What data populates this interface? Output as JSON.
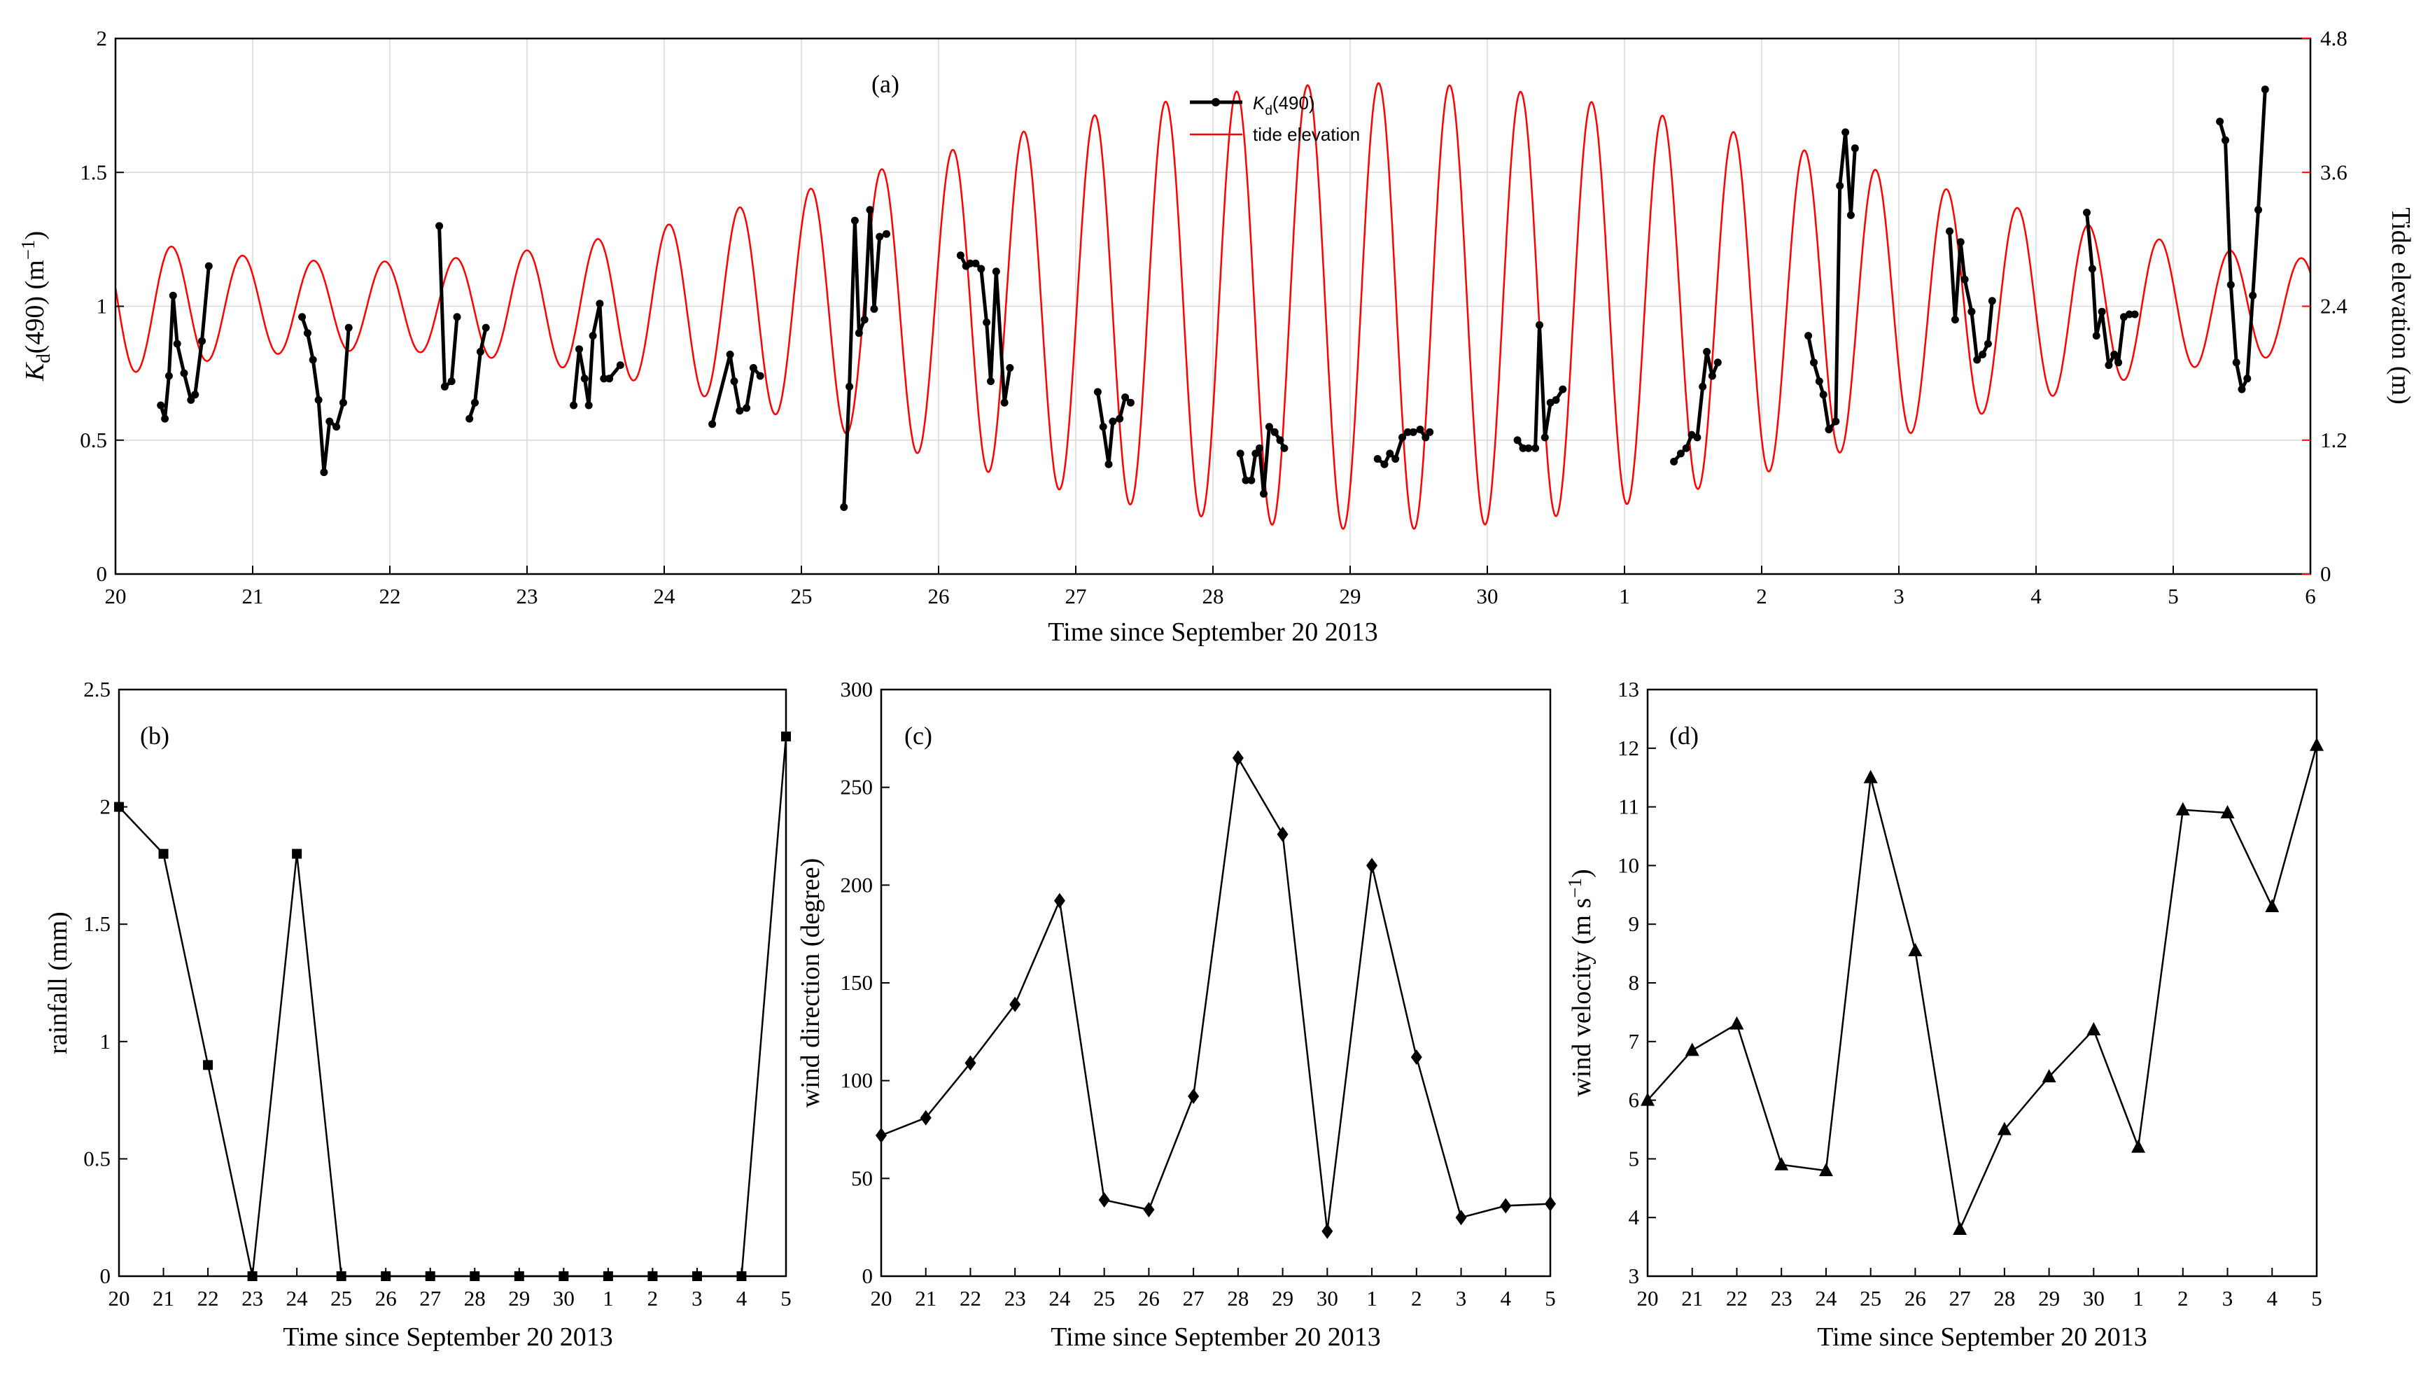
{
  "chart_data": [
    {
      "panel": "(a)",
      "type": "line",
      "xlabel": "Time since September 20 2013",
      "ylabel": "K_d(490) (m^-1)",
      "ylabel_parts": [
        "K",
        "d",
        "(490) (m",
        "−1",
        ")"
      ],
      "ylabel_right": "Tide elevation (m)",
      "x_ticks": [
        "20",
        "21",
        "22",
        "23",
        "24",
        "25",
        "26",
        "27",
        "28",
        "29",
        "30",
        "1",
        "2",
        "3",
        "4",
        "5",
        "6"
      ],
      "ylim": [
        0,
        2
      ],
      "yticks": [
        "0",
        "0.5",
        "1",
        "1.5",
        "2"
      ],
      "ylim_right": [
        0,
        4.8
      ],
      "yticks_right": [
        "0",
        "1.2",
        "2.4",
        "3.6",
        "4.8"
      ],
      "grid": true,
      "legend": [
        "K_d(490)",
        "tide elevation"
      ],
      "legend_placement": "top-center",
      "legend_parts": [
        "K",
        "d",
        "(490)"
      ],
      "legend_tide": "tide elevation",
      "tide": {
        "color": "#ff0000",
        "mean": 2.4,
        "period_days": 0.5175,
        "phase_day": 0.41,
        "amp_max": 2.0,
        "amp_min": 0.4,
        "amp_min_day": 9.2
      },
      "kd_segments": [
        [
          [
            0.33,
            0.63
          ],
          [
            0.36,
            0.58
          ],
          [
            0.39,
            0.74
          ],
          [
            0.42,
            1.04
          ],
          [
            0.45,
            0.86
          ],
          [
            0.5,
            0.75
          ],
          [
            0.55,
            0.65
          ],
          [
            0.58,
            0.67
          ],
          [
            0.63,
            0.87
          ],
          [
            0.68,
            1.15
          ]
        ],
        [
          [
            1.36,
            0.96
          ],
          [
            1.4,
            0.9
          ],
          [
            1.44,
            0.8
          ],
          [
            1.48,
            0.65
          ],
          [
            1.52,
            0.38
          ],
          [
            1.56,
            0.57
          ],
          [
            1.61,
            0.55
          ],
          [
            1.66,
            0.64
          ],
          [
            1.7,
            0.92
          ]
        ],
        [
          [
            2.36,
            1.3
          ],
          [
            2.4,
            0.7
          ],
          [
            2.45,
            0.72
          ],
          [
            2.49,
            0.96
          ]
        ],
        [
          [
            2.58,
            0.58
          ],
          [
            2.62,
            0.64
          ],
          [
            2.66,
            0.83
          ],
          [
            2.7,
            0.92
          ]
        ],
        [
          [
            3.34,
            0.63
          ],
          [
            3.38,
            0.84
          ],
          [
            3.42,
            0.73
          ],
          [
            3.45,
            0.63
          ],
          [
            3.48,
            0.89
          ],
          [
            3.53,
            1.01
          ],
          [
            3.56,
            0.73
          ],
          [
            3.6,
            0.73
          ],
          [
            3.68,
            0.78
          ]
        ],
        [
          [
            4.35,
            0.56
          ],
          [
            4.48,
            0.82
          ],
          [
            4.51,
            0.72
          ],
          [
            4.55,
            0.61
          ],
          [
            4.6,
            0.62
          ],
          [
            4.65,
            0.77
          ],
          [
            4.7,
            0.74
          ]
        ],
        [
          [
            5.31,
            0.25
          ],
          [
            5.35,
            0.7
          ],
          [
            5.39,
            1.32
          ],
          [
            5.42,
            0.9
          ],
          [
            5.46,
            0.95
          ],
          [
            5.5,
            1.36
          ],
          [
            5.53,
            0.99
          ],
          [
            5.57,
            1.26
          ],
          [
            5.62,
            1.27
          ]
        ],
        [
          [
            6.16,
            1.19
          ],
          [
            6.2,
            1.15
          ],
          [
            6.23,
            1.16
          ],
          [
            6.27,
            1.16
          ],
          [
            6.31,
            1.14
          ],
          [
            6.35,
            0.94
          ],
          [
            6.38,
            0.72
          ],
          [
            6.42,
            1.13
          ],
          [
            6.48,
            0.64
          ],
          [
            6.52,
            0.77
          ]
        ],
        [
          [
            7.16,
            0.68
          ],
          [
            7.2,
            0.55
          ],
          [
            7.24,
            0.41
          ],
          [
            7.27,
            0.57
          ],
          [
            7.32,
            0.58
          ],
          [
            7.36,
            0.66
          ],
          [
            7.4,
            0.64
          ]
        ],
        [
          [
            8.2,
            0.45
          ],
          [
            8.24,
            0.35
          ],
          [
            8.28,
            0.35
          ],
          [
            8.31,
            0.45
          ],
          [
            8.34,
            0.47
          ],
          [
            8.37,
            0.3
          ],
          [
            8.41,
            0.55
          ],
          [
            8.45,
            0.53
          ],
          [
            8.49,
            0.5
          ],
          [
            8.52,
            0.47
          ]
        ],
        [
          [
            9.2,
            0.43
          ],
          [
            9.25,
            0.41
          ],
          [
            9.29,
            0.45
          ],
          [
            9.33,
            0.43
          ],
          [
            9.38,
            0.51
          ],
          [
            9.42,
            0.53
          ],
          [
            9.46,
            0.53
          ],
          [
            9.51,
            0.54
          ],
          [
            9.55,
            0.51
          ],
          [
            9.58,
            0.53
          ]
        ],
        [
          [
            10.22,
            0.5
          ],
          [
            10.26,
            0.47
          ],
          [
            10.3,
            0.47
          ],
          [
            10.35,
            0.47
          ],
          [
            10.38,
            0.93
          ],
          [
            10.42,
            0.51
          ],
          [
            10.46,
            0.64
          ],
          [
            10.5,
            0.65
          ],
          [
            10.55,
            0.69
          ]
        ],
        [
          [
            11.36,
            0.42
          ],
          [
            11.41,
            0.45
          ],
          [
            11.45,
            0.47
          ],
          [
            11.49,
            0.52
          ],
          [
            11.53,
            0.51
          ],
          [
            11.57,
            0.7
          ],
          [
            11.6,
            0.83
          ],
          [
            11.64,
            0.74
          ],
          [
            11.68,
            0.79
          ]
        ],
        [
          [
            12.34,
            0.89
          ],
          [
            12.38,
            0.79
          ],
          [
            12.42,
            0.72
          ],
          [
            12.45,
            0.67
          ],
          [
            12.49,
            0.54
          ],
          [
            12.54,
            0.57
          ],
          [
            12.57,
            1.45
          ],
          [
            12.61,
            1.65
          ],
          [
            12.65,
            1.34
          ],
          [
            12.68,
            1.59
          ]
        ],
        [
          [
            13.37,
            1.28
          ],
          [
            13.41,
            0.95
          ],
          [
            13.45,
            1.24
          ],
          [
            13.48,
            1.1
          ],
          [
            13.53,
            0.98
          ],
          [
            13.57,
            0.8
          ],
          [
            13.61,
            0.82
          ],
          [
            13.65,
            0.86
          ],
          [
            13.68,
            1.02
          ]
        ],
        [
          [
            14.37,
            1.35
          ],
          [
            14.41,
            1.14
          ],
          [
            14.44,
            0.89
          ],
          [
            14.48,
            0.98
          ],
          [
            14.53,
            0.78
          ],
          [
            14.57,
            0.82
          ],
          [
            14.6,
            0.79
          ],
          [
            14.64,
            0.96
          ],
          [
            14.68,
            0.97
          ],
          [
            14.72,
            0.97
          ]
        ],
        [
          [
            15.34,
            1.69
          ],
          [
            15.38,
            1.62
          ],
          [
            15.42,
            1.08
          ],
          [
            15.46,
            0.79
          ],
          [
            15.5,
            0.69
          ],
          [
            15.54,
            0.73
          ],
          [
            15.58,
            1.04
          ],
          [
            15.62,
            1.36
          ],
          [
            15.67,
            1.81
          ]
        ]
      ]
    },
    {
      "panel": "(b)",
      "type": "line",
      "marker": "square",
      "xlabel": "Time since September 20 2013",
      "ylabel": "rainfall (mm)",
      "categories": [
        "20",
        "21",
        "22",
        "23",
        "24",
        "25",
        "26",
        "27",
        "28",
        "29",
        "30",
        "1",
        "2",
        "3",
        "4",
        "5"
      ],
      "values": [
        2.0,
        1.8,
        0.9,
        0.0,
        1.8,
        0.0,
        0.0,
        0.0,
        0.0,
        0.0,
        0.0,
        0.0,
        0.0,
        0.0,
        0.0,
        2.3
      ],
      "ylim": [
        0,
        2.5
      ],
      "yticks": [
        "0",
        "0.5",
        "1",
        "1.5",
        "2",
        "2.5"
      ]
    },
    {
      "panel": "(c)",
      "type": "line",
      "marker": "diamond",
      "xlabel": "Time since September 20 2013",
      "ylabel": "wind direction (degree)",
      "categories": [
        "20",
        "21",
        "22",
        "23",
        "24",
        "25",
        "26",
        "27",
        "28",
        "29",
        "30",
        "1",
        "2",
        "3",
        "4",
        "5"
      ],
      "values": [
        72,
        81,
        109,
        139,
        192,
        39,
        34,
        92,
        265,
        226,
        23,
        210,
        112,
        30,
        36,
        37
      ],
      "ylim": [
        0,
        300
      ],
      "yticks": [
        "0",
        "50",
        "100",
        "150",
        "200",
        "250",
        "300"
      ]
    },
    {
      "panel": "(d)",
      "type": "line",
      "marker": "triangle",
      "xlabel": "Time since September 20 2013",
      "ylabel": "wind velocity (m s^-1)",
      "ylabel_parts": [
        "wind velocity (m s",
        "−1",
        ")"
      ],
      "categories": [
        "20",
        "21",
        "22",
        "23",
        "24",
        "25",
        "26",
        "27",
        "28",
        "29",
        "30",
        "1",
        "2",
        "3",
        "4",
        "5"
      ],
      "values": [
        6.0,
        6.85,
        7.3,
        4.9,
        4.8,
        11.5,
        8.55,
        3.8,
        5.5,
        6.4,
        7.2,
        5.2,
        10.95,
        10.9,
        9.3,
        12.05
      ],
      "ylim": [
        3,
        13
      ],
      "yticks": [
        "3",
        "4",
        "5",
        "6",
        "7",
        "8",
        "9",
        "10",
        "11",
        "12",
        "13"
      ]
    }
  ]
}
